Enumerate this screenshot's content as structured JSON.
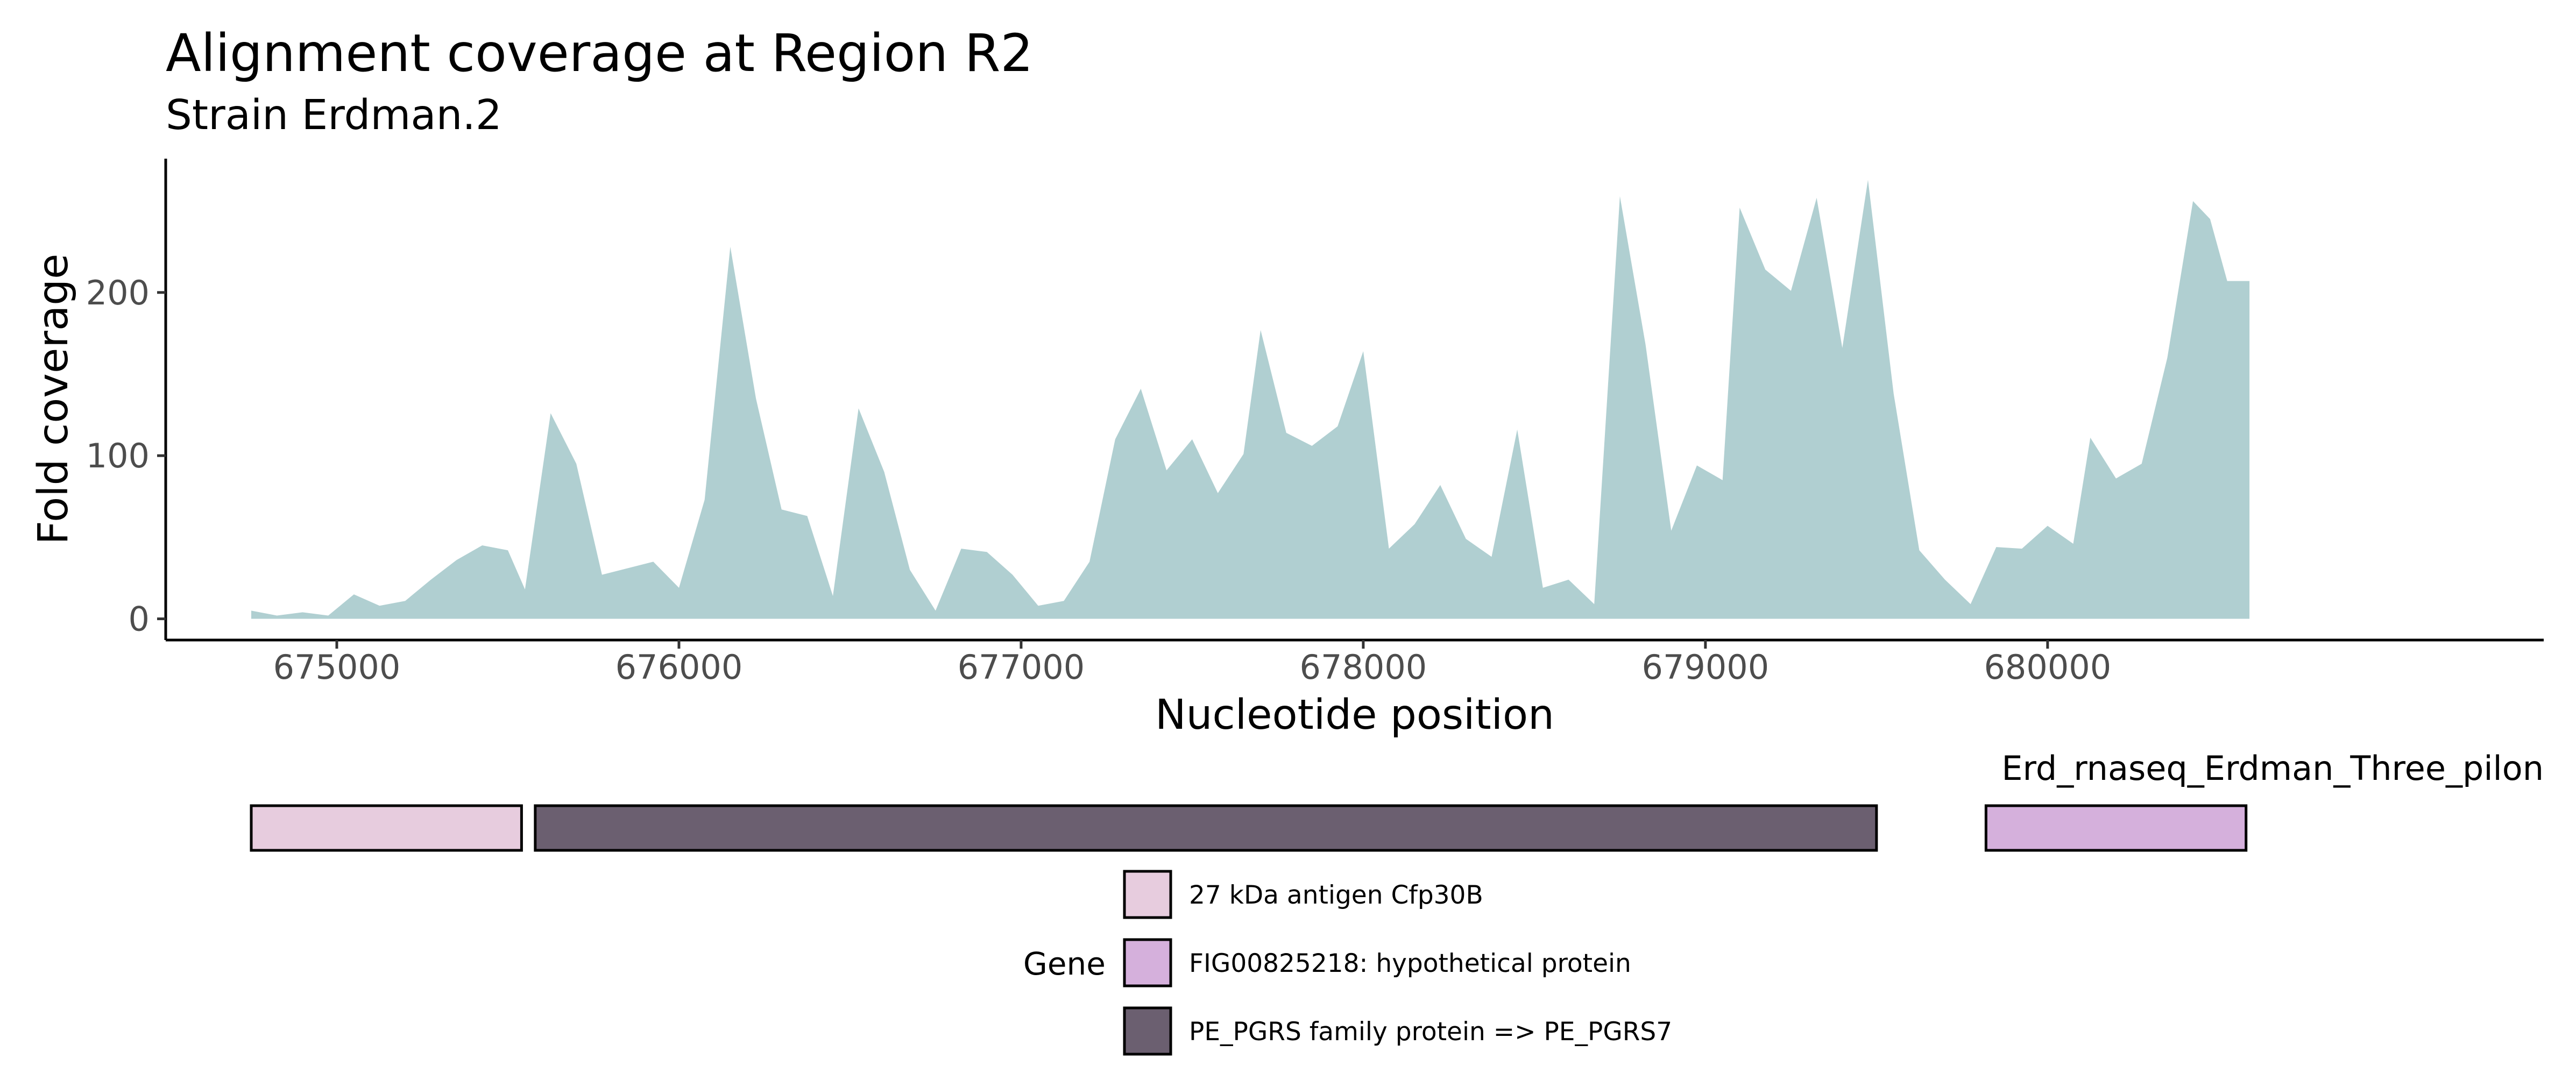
{
  "chart_data": {
    "type": "area",
    "title": "Alignment coverage at Region R2",
    "subtitle": "Strain Erdman.2",
    "xlabel": "Nucleotide position",
    "ylabel": "Fold coverage",
    "xlim": [
      674500,
      681450
    ],
    "ylim": [
      -13,
      282
    ],
    "x_ticks": [
      675000,
      676000,
      677000,
      678000,
      679000,
      680000
    ],
    "y_ticks": [
      0,
      100,
      200
    ],
    "grid": false,
    "fill_color": "#b0cfd1",
    "series": [
      {
        "x": [
          674750,
          674825,
          674900,
          674975,
          675050,
          675125,
          675200,
          675275,
          675350,
          675425,
          675500,
          675550,
          675625,
          675700,
          675775,
          675850,
          675925,
          676000,
          676075,
          676150,
          676225,
          676300,
          676375,
          676450,
          676525,
          676600,
          676675,
          676750,
          676825,
          676900,
          676975,
          677050,
          677125,
          677200,
          677275,
          677350,
          677425,
          677500,
          677575,
          677650,
          677700,
          677775,
          677850,
          677925,
          678000,
          678075,
          678150,
          678225,
          678300,
          678375,
          678450,
          678525,
          678600,
          678675,
          678750,
          678825,
          678900,
          678975,
          679050,
          679100,
          679175,
          679250,
          679325,
          679400,
          679475,
          679550,
          679625,
          679700,
          679775,
          679850,
          679925,
          680000,
          680075,
          680125,
          680200,
          680275,
          680350,
          680425,
          680475,
          680525,
          680590
        ],
        "values": [
          5,
          2,
          4,
          2,
          15,
          8,
          11,
          24,
          36,
          45,
          42,
          18,
          126,
          95,
          27,
          31,
          35,
          19,
          73,
          228,
          135,
          67,
          63,
          14,
          129,
          90,
          30,
          5,
          43,
          41,
          27,
          8,
          11,
          35,
          110,
          141,
          91,
          110,
          77,
          101,
          177,
          114,
          106,
          118,
          164,
          43,
          58,
          82,
          49,
          38,
          116,
          19,
          24,
          9,
          259,
          168,
          54,
          94,
          85,
          252,
          214,
          201,
          258,
          166,
          269,
          138,
          42,
          24,
          9,
          44,
          43,
          57,
          46,
          111,
          86,
          95,
          160,
          256,
          245,
          207,
          207
        ]
      }
    ]
  },
  "gene_track": {
    "label": "Erd_rnaseq_Erdman_Three_pilon",
    "genes": [
      {
        "name": "27 kDa antigen Cfp30B",
        "start": 674750,
        "end": 675540,
        "color": "#e7ccde"
      },
      {
        "name": "PE_PGRS family protein => PE_PGRS7",
        "start": 675580,
        "end": 679500,
        "color": "#6b5f70"
      },
      {
        "name": "FIG00825218: hypothetical protein",
        "start": 679820,
        "end": 680580,
        "color": "#d5b0dc"
      }
    ]
  },
  "legend": {
    "title": "Gene",
    "entries": [
      {
        "label": "27 kDa antigen Cfp30B",
        "color": "#e7ccde"
      },
      {
        "label": "FIG00825218: hypothetical protein",
        "color": "#d5b0dc"
      },
      {
        "label": "PE_PGRS family protein => PE_PGRS7",
        "color": "#6b5f70"
      }
    ]
  }
}
